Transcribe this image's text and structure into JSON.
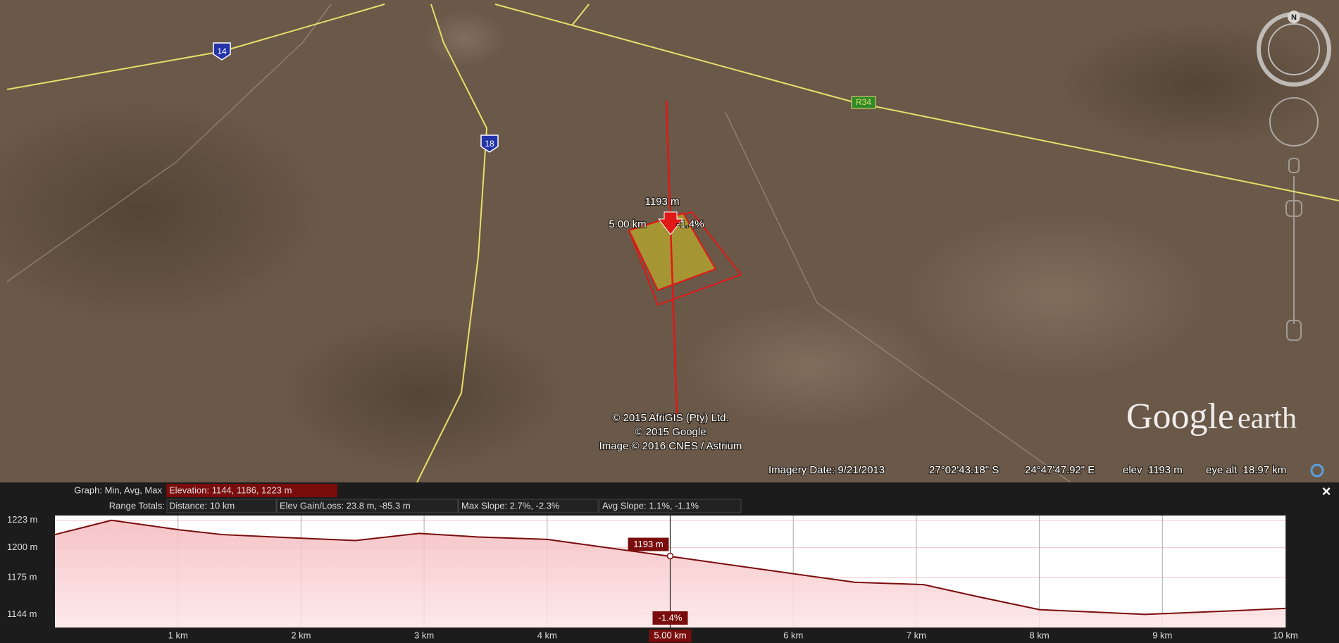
{
  "map": {
    "road_labels": [
      "14",
      "18",
      "R34"
    ],
    "profile_labels": {
      "elevation": "1193 m",
      "distance": "5.00 km",
      "slope": "-1.4%"
    },
    "attribution": [
      "© 2015 AfriGIS (Pty) Ltd.",
      "© 2015 Google",
      "Image © 2016 CNES / Astrium"
    ],
    "logo": [
      "Google",
      "earth"
    ],
    "compass": "N"
  },
  "status_bar": {
    "imagery_date": "Imagery Date: 9/21/2013",
    "latitude": "27°02'43.18\" S",
    "longitude": "24°47'47.92\" E",
    "elevation": "elev  1193 m",
    "eye_altitude": "eye alt  18.97 km"
  },
  "panel": {
    "graph_label": "Graph: Min, Avg, Max",
    "elevation_summary": "Elevation: 1144, 1186, 1223 m",
    "range_label": "Range Totals:",
    "distance": "Distance: 10 km",
    "elev_gain_loss": "Elev Gain/Loss: 23.8 m, -85.3 m",
    "max_slope": "Max Slope: 2.7%, -2.3%",
    "avg_slope": "Avg Slope: 1.1%, -1.1%",
    "close": "×"
  },
  "chart_data": {
    "type": "area",
    "x": [
      0,
      0.46,
      1.01,
      1.36,
      1.99,
      2.44,
      2.96,
      3.44,
      4.0,
      4.98,
      6.01,
      6.5,
      7.06,
      7.54,
      8.0,
      8.86,
      9.56,
      10
    ],
    "values": [
      1211,
      1223,
      1215,
      1211,
      1208,
      1206,
      1212,
      1209,
      1207,
      1193,
      1178,
      1171,
      1169,
      1158,
      1148,
      1144,
      1147,
      1149
    ],
    "color": "#7a0c0c",
    "xlim": [
      0,
      10
    ],
    "ylim": [
      1133,
      1227
    ],
    "xticks": [
      {
        "value": 1,
        "label": "1 km"
      },
      {
        "value": 2,
        "label": "2 km"
      },
      {
        "value": 3,
        "label": "3 km"
      },
      {
        "value": 4,
        "label": "4 km"
      },
      {
        "value": 6,
        "label": "6 km"
      },
      {
        "value": 7,
        "label": "7 km"
      },
      {
        "value": 8,
        "label": "8 km"
      },
      {
        "value": 9,
        "label": "9 km"
      },
      {
        "value": 10,
        "label": "10 km"
      }
    ],
    "yticks": [
      {
        "value": 1144,
        "label": "1144 m"
      },
      {
        "value": 1175,
        "label": "1175 m"
      },
      {
        "value": 1200,
        "label": "1200 m"
      },
      {
        "value": 1223,
        "label": "1223 m"
      }
    ],
    "cursor": {
      "x": 5,
      "elevation": 1193,
      "elevation_label": "1193 m",
      "slope_label": "-1.4%",
      "x_label": "5.00 km"
    },
    "grid": true
  }
}
